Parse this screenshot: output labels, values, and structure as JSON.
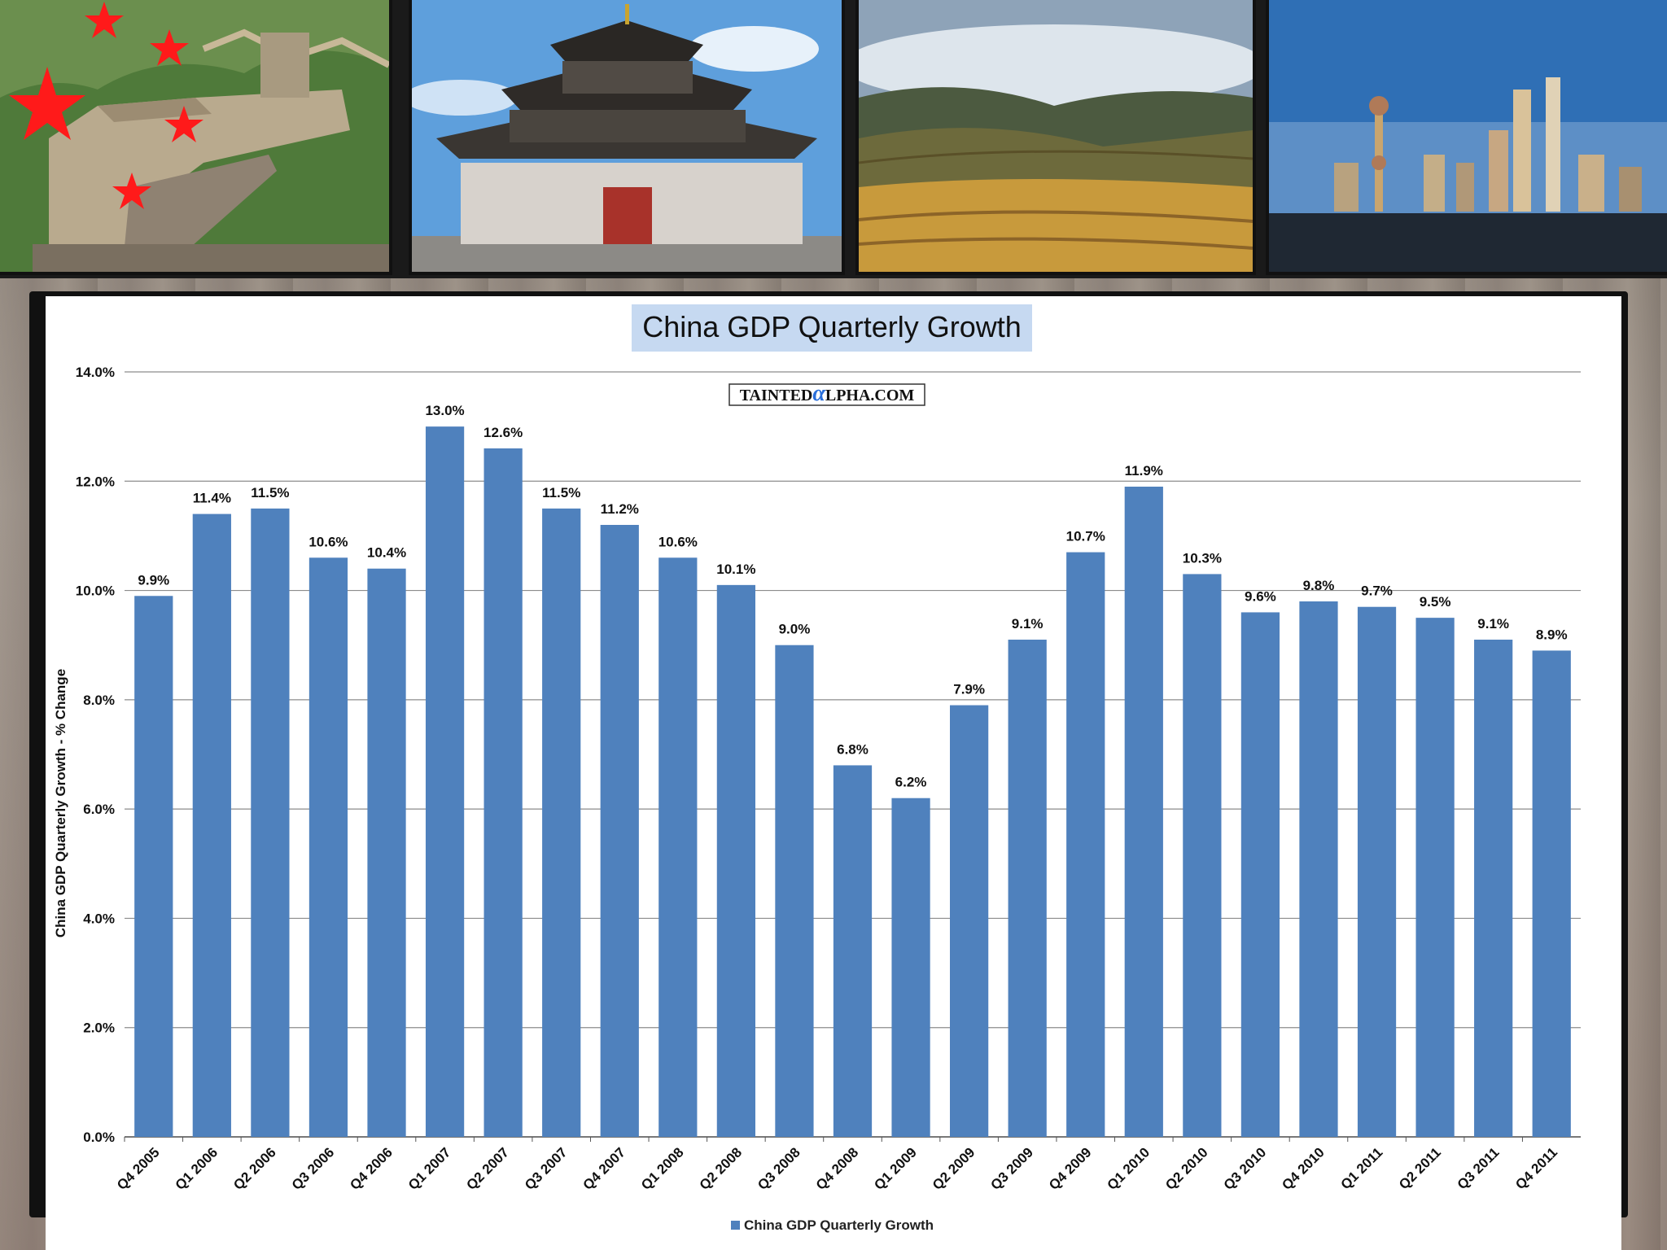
{
  "photos": [
    {
      "name": "great-wall-photo",
      "icon": "star-icon"
    },
    {
      "name": "pagoda-temple-photo"
    },
    {
      "name": "terraced-fields-photo"
    },
    {
      "name": "shanghai-skyline-photo"
    }
  ],
  "watermark": {
    "text_before": "TAINTED",
    "alpha_glyph": "α",
    "text_after": "LPHA.COM",
    "alpha_color": "#2a6fdb"
  },
  "colors": {
    "bar": "#4f81bd",
    "title_background": "#c6d9f1",
    "grid": "#8c8c8c"
  },
  "chart_data": {
    "type": "bar",
    "title": "China GDP Quarterly Growth",
    "ylabel": "China GDP Quarterly Growth - % Change",
    "xlabel": "",
    "ylim": [
      0,
      14
    ],
    "yticks": [
      "0.0%",
      "2.0%",
      "4.0%",
      "6.0%",
      "8.0%",
      "10.0%",
      "12.0%",
      "14.0%"
    ],
    "grid": true,
    "legend_position": "bottom",
    "categories": [
      "Q4 2005",
      "Q1 2006",
      "Q2 2006",
      "Q3 2006",
      "Q4 2006",
      "Q1 2007",
      "Q2 2007",
      "Q3 2007",
      "Q4 2007",
      "Q1 2008",
      "Q2 2008",
      "Q3 2008",
      "Q4 2008",
      "Q1 2009",
      "Q2 2009",
      "Q3 2009",
      "Q4 2009",
      "Q1 2010",
      "Q2 2010",
      "Q3 2010",
      "Q4 2010",
      "Q1 2011",
      "Q2 2011",
      "Q3 2011",
      "Q4 2011"
    ],
    "series": [
      {
        "name": "China GDP Quarterly Growth",
        "values": [
          9.9,
          11.4,
          11.5,
          10.6,
          10.4,
          13.0,
          12.6,
          11.5,
          11.2,
          10.6,
          10.1,
          9.0,
          6.8,
          6.2,
          7.9,
          9.1,
          10.7,
          11.9,
          10.3,
          9.6,
          9.8,
          9.7,
          9.5,
          9.1,
          8.9
        ],
        "labels": [
          "9.9%",
          "11.4%",
          "11.5%",
          "10.6%",
          "10.4%",
          "13.0%",
          "12.6%",
          "11.5%",
          "11.2%",
          "10.6%",
          "10.1%",
          "9.0%",
          "6.8%",
          "6.2%",
          "7.9%",
          "9.1%",
          "10.7%",
          "11.9%",
          "10.3%",
          "9.6%",
          "9.8%",
          "9.7%",
          "9.5%",
          "9.1%",
          "8.9%"
        ]
      }
    ]
  }
}
